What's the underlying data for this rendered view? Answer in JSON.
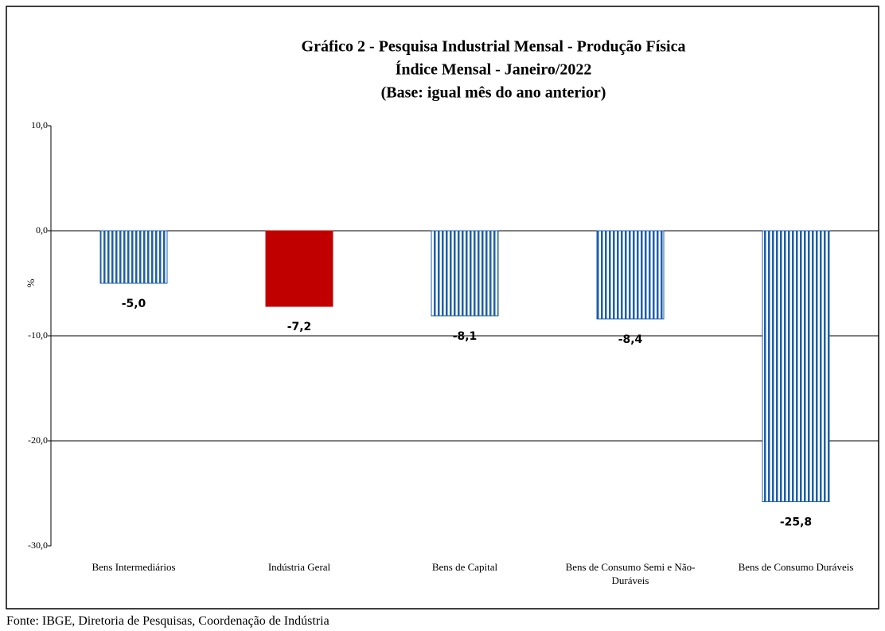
{
  "chart_data": {
    "type": "bar",
    "title_lines": [
      "Gráfico 2 - Pesquisa Industrial Mensal - Produção Física",
      "Índice Mensal - Janeiro/2022",
      "(Base: igual mês do ano anterior)"
    ],
    "y_label": "%",
    "categories": [
      "Bens Intermediários",
      "Indústria Geral",
      "Bens de Capital",
      "Bens de Consumo Semi e Não-Duráveis",
      "Bens de Consumo Duráveis"
    ],
    "values": [
      -5.0,
      -7.2,
      -8.1,
      -8.4,
      -25.8
    ],
    "value_labels": [
      "-5,0",
      "-7,2",
      "-8,1",
      "-8,4",
      "-25,8"
    ],
    "colors": [
      "#1f5fa8",
      "#c00000",
      "#1f5fa8",
      "#1f5fa8",
      "#1f5fa8"
    ],
    "patterns": [
      "stripes",
      "solid",
      "stripes",
      "stripes",
      "stripes"
    ],
    "ylim": [
      -30,
      10
    ],
    "yticks": [
      {
        "value": 10,
        "label": "10,0"
      },
      {
        "value": 0,
        "label": "0,0"
      },
      {
        "value": -10,
        "label": "-10,0"
      },
      {
        "value": -20,
        "label": "-20,0"
      },
      {
        "value": -30,
        "label": "-30,0"
      }
    ],
    "grid": true,
    "source": "Fonte: IBGE, Diretoria de Pesquisas, Coordenação de Indústria"
  }
}
